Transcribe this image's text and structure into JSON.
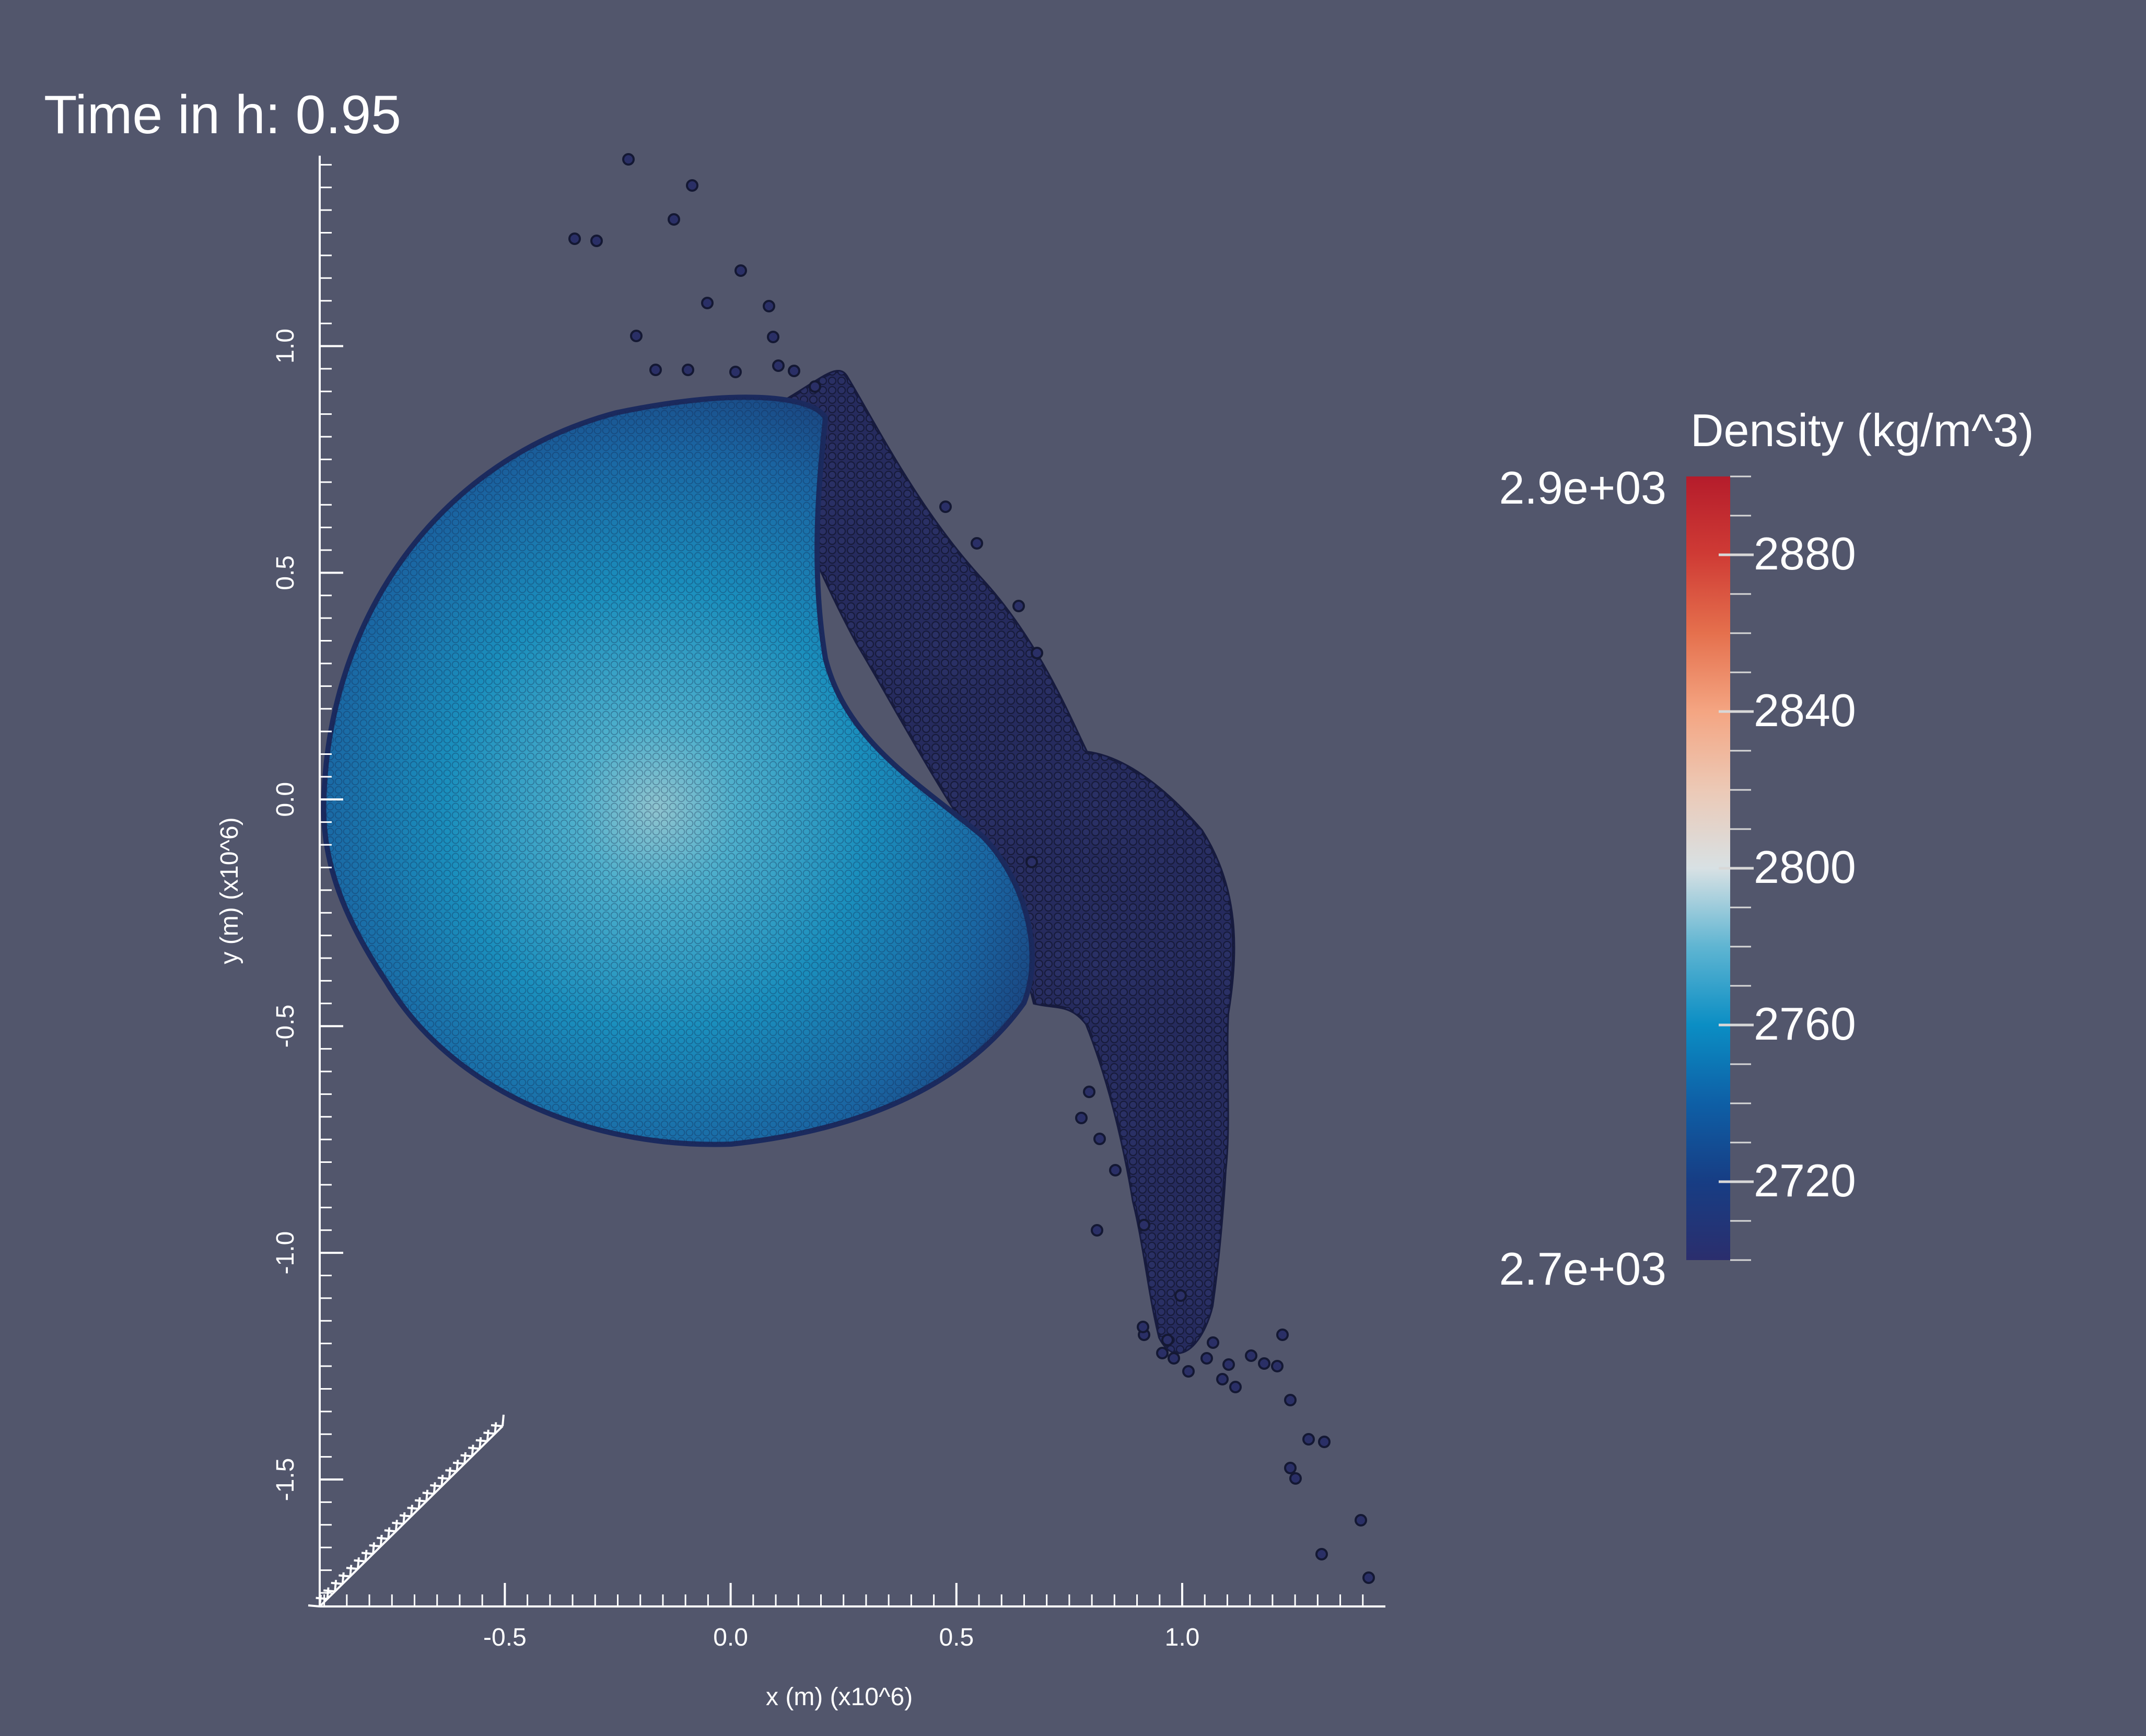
{
  "time_label": "Time in h: 0.95",
  "colorbar": {
    "title": "Density (kg/m^3)",
    "max_label": "2.9e+03",
    "min_label": "2.7e+03",
    "min": 2700,
    "max": 2900,
    "tick_labels": [
      "2880",
      "2840",
      "2800",
      "2760",
      "2720"
    ],
    "tick_values": [
      2880,
      2840,
      2800,
      2760,
      2720
    ],
    "colormap": [
      "#2b2e6d",
      "#173d84",
      "#0e5fa6",
      "#0b8ec4",
      "#5fb5d2",
      "#c9dfe6",
      "#e7d3c8",
      "#f4a582",
      "#e5704d",
      "#cf3b35",
      "#b51c2b"
    ]
  },
  "axes": {
    "x_title": "x (m) (x10^6)",
    "y_title": "y (m) (x10^6)",
    "x_range": [
      -0.91,
      1.45
    ],
    "y_range": [
      -1.78,
      1.42
    ],
    "x_ticks": [
      -0.5,
      0.0,
      0.5,
      1.0
    ],
    "x_tick_labels": [
      "-0.5",
      "0.0",
      "0.5",
      "1.0"
    ],
    "y_ticks": [
      1.0,
      0.5,
      0.0,
      -0.5,
      -1.0,
      -1.5
    ],
    "y_tick_labels": [
      "1.0",
      "0.5",
      "0.0",
      "-0.5",
      "-1.0",
      "-1.5"
    ]
  },
  "colors": {
    "background": "#52566c",
    "particle_dark": "#232a58",
    "particle_edge": "#1a1f44",
    "body_core": "#8fc4cf",
    "body_mid": "#1a8fbd",
    "body_edge": "#17437f"
  }
}
